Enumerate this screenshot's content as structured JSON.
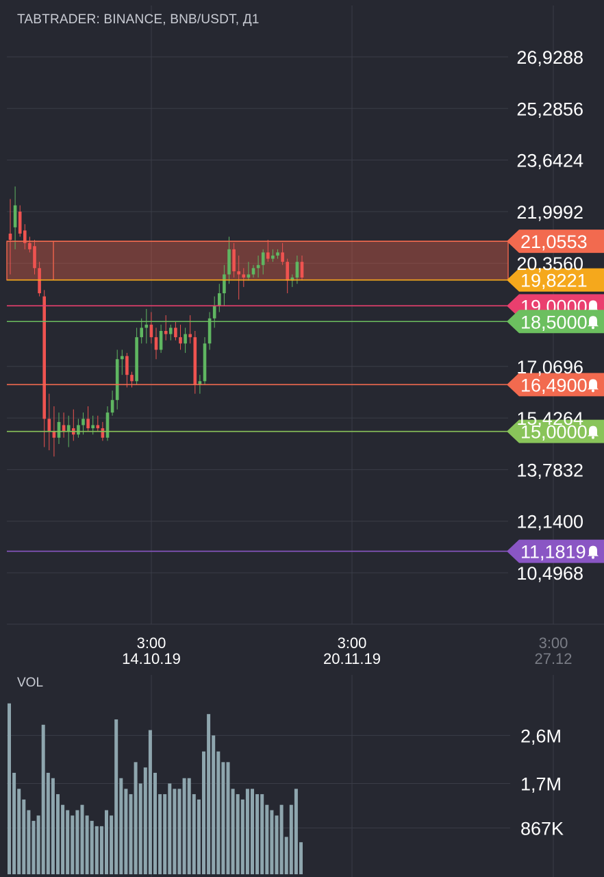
{
  "header": {
    "title": "TABTRADER: BINANCE, BNB/USDT, Д1"
  },
  "volume_panel": {
    "label": "VOL"
  },
  "chart_data": [
    {
      "type": "candlestick",
      "title": "TABTRADER: BINANCE, BNB/USDT, Д1",
      "ylim": [
        9.6,
        27.8
      ],
      "y_ticks": [
        "26,9288",
        "25,2856",
        "23,6424",
        "21,9992",
        "20,3560",
        "17,0696",
        "15,4264",
        "13,7832",
        "12,1400",
        "10,4968"
      ],
      "x_ticks": [
        {
          "time": "3:00",
          "date": "14.10.19"
        },
        {
          "time": "3:00",
          "date": "20.11.19"
        },
        {
          "time": "3:00",
          "date": "27.12"
        }
      ],
      "grid": true,
      "zone": {
        "top": 21.0553,
        "bottom": 19.8221,
        "color": "#e8624a"
      },
      "levels": [
        {
          "value": 21.0553,
          "label": "21,0553",
          "color": "#f26a4f",
          "bell": false
        },
        {
          "value": 19.8221,
          "label": "19,8221",
          "color": "#f5a81c",
          "bell": false
        },
        {
          "value": 19.0,
          "label": "19,0000",
          "color": "#ea3f6e",
          "bell": true
        },
        {
          "value": 18.5,
          "label": "18,5000",
          "color": "#6cbf5f",
          "bell": true
        },
        {
          "value": 16.49,
          "label": "16,4900",
          "color": "#f26a4f",
          "bell": true
        },
        {
          "value": 15.0,
          "label": "15,0000",
          "color": "#89c45a",
          "bell": true
        },
        {
          "value": 11.1819,
          "label": "11,1819",
          "color": "#8a56c4",
          "bell": true
        }
      ],
      "candles": [
        [
          21.3,
          22.4,
          20.0,
          21.1
        ],
        [
          21.5,
          22.8,
          20.8,
          22.2
        ],
        [
          22.0,
          22.2,
          21.2,
          21.3
        ],
        [
          21.4,
          21.6,
          20.8,
          21.0
        ],
        [
          21.0,
          21.2,
          20.7,
          20.8
        ],
        [
          20.9,
          21.1,
          20.0,
          20.2
        ],
        [
          20.2,
          20.4,
          19.3,
          19.4
        ],
        [
          19.3,
          19.5,
          14.5,
          15.4
        ],
        [
          15.4,
          16.2,
          14.4,
          15.0
        ],
        [
          15.0,
          15.8,
          14.2,
          14.8
        ],
        [
          14.8,
          15.6,
          14.6,
          15.3
        ],
        [
          15.2,
          15.6,
          14.8,
          15.0
        ],
        [
          15.0,
          15.5,
          14.5,
          15.2
        ],
        [
          15.1,
          15.7,
          14.7,
          14.9
        ],
        [
          14.9,
          15.4,
          14.8,
          15.2
        ],
        [
          15.2,
          15.6,
          14.9,
          15.4
        ],
        [
          15.4,
          15.8,
          15.0,
          15.1
        ],
        [
          15.1,
          15.5,
          14.9,
          15.2
        ],
        [
          15.2,
          15.5,
          15.0,
          15.1
        ],
        [
          15.1,
          15.3,
          14.7,
          14.8
        ],
        [
          14.8,
          15.8,
          14.7,
          15.6
        ],
        [
          15.6,
          16.3,
          15.5,
          16.0
        ],
        [
          16.0,
          17.6,
          15.7,
          17.3
        ],
        [
          17.3,
          17.6,
          16.8,
          17.4
        ],
        [
          17.4,
          17.5,
          16.4,
          16.8
        ],
        [
          16.8,
          16.9,
          16.4,
          16.6
        ],
        [
          16.6,
          18.3,
          16.5,
          18.0
        ],
        [
          18.0,
          18.6,
          17.8,
          18.3
        ],
        [
          18.3,
          18.9,
          17.8,
          18.4
        ],
        [
          18.4,
          18.8,
          17.8,
          18.0
        ],
        [
          18.0,
          18.3,
          17.3,
          17.6
        ],
        [
          17.6,
          18.4,
          17.5,
          18.2
        ],
        [
          18.2,
          18.7,
          17.9,
          18.1
        ],
        [
          18.1,
          18.4,
          17.9,
          18.3
        ],
        [
          18.3,
          18.5,
          17.9,
          18.0
        ],
        [
          18.0,
          18.4,
          17.6,
          17.8
        ],
        [
          17.8,
          18.3,
          17.5,
          18.1
        ],
        [
          18.1,
          18.7,
          17.8,
          18.0
        ],
        [
          18.0,
          18.2,
          16.2,
          16.5
        ],
        [
          16.5,
          16.8,
          16.2,
          16.6
        ],
        [
          16.6,
          18.0,
          16.5,
          17.8
        ],
        [
          17.8,
          18.8,
          17.6,
          18.6
        ],
        [
          18.6,
          19.3,
          18.3,
          19.0
        ],
        [
          19.0,
          19.7,
          18.8,
          19.4
        ],
        [
          19.4,
          20.3,
          19.0,
          20.0
        ],
        [
          20.0,
          21.2,
          19.7,
          20.8
        ],
        [
          20.8,
          21.0,
          19.9,
          20.1
        ],
        [
          20.1,
          20.6,
          19.2,
          20.0
        ],
        [
          20.0,
          20.2,
          19.6,
          19.9
        ],
        [
          19.9,
          20.4,
          19.8,
          20.0
        ],
        [
          20.0,
          20.3,
          19.9,
          20.2
        ],
        [
          20.2,
          20.6,
          19.9,
          20.3
        ],
        [
          20.3,
          20.8,
          20.0,
          20.7
        ],
        [
          20.7,
          21.1,
          20.4,
          20.5
        ],
        [
          20.5,
          20.8,
          20.4,
          20.6
        ],
        [
          20.6,
          20.8,
          20.5,
          20.7
        ],
        [
          20.7,
          21.0,
          20.3,
          20.4
        ],
        [
          20.4,
          20.5,
          19.4,
          19.8
        ],
        [
          19.8,
          20.0,
          19.6,
          19.9
        ],
        [
          19.9,
          20.6,
          19.7,
          20.4
        ],
        [
          20.4,
          20.6,
          19.8,
          19.9
        ]
      ]
    },
    {
      "type": "bar",
      "title": "VOL",
      "y_ticks": [
        "2,6M",
        "1,7M",
        "867K"
      ],
      "ylim": [
        0,
        3.3
      ],
      "values": [
        3.2,
        1.9,
        1.6,
        1.4,
        1.2,
        1.0,
        1.1,
        2.8,
        1.9,
        1.8,
        1.5,
        1.3,
        1.2,
        1.1,
        1.2,
        1.3,
        1.1,
        1.0,
        0.9,
        0.9,
        1.2,
        1.1,
        2.9,
        1.8,
        1.6,
        1.5,
        2.1,
        1.7,
        2.0,
        2.7,
        1.9,
        1.5,
        1.5,
        1.7,
        1.6,
        1.6,
        1.8,
        1.8,
        1.5,
        1.4,
        2.3,
        3.0,
        2.6,
        2.3,
        2.1,
        2.1,
        1.6,
        1.5,
        1.4,
        1.6,
        1.6,
        1.5,
        1.5,
        1.3,
        1.2,
        1.1,
        1.3,
        0.7,
        1.3,
        1.6,
        0.6
      ]
    }
  ]
}
